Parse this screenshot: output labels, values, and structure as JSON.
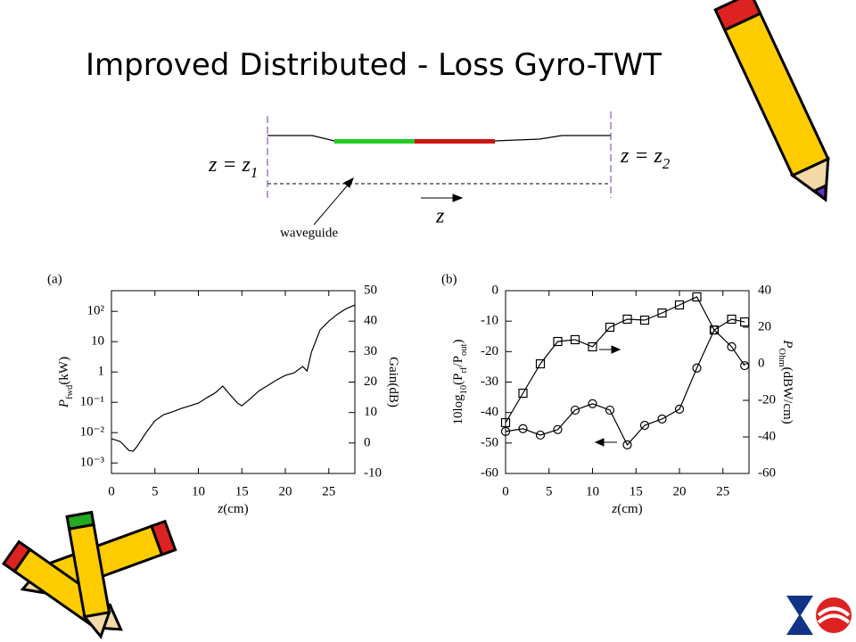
{
  "title": "Improved Distributed - Loss Gyro-TWT",
  "diagram": {
    "left_plane": [
      {
        "text": "z = z",
        "sub": false
      },
      {
        "text": "1",
        "sub": true
      }
    ],
    "right_plane": [
      {
        "text": "z = z",
        "sub": false
      },
      {
        "text": "2",
        "sub": true
      }
    ],
    "direction": "z",
    "waveguide": "waveguide"
  },
  "chart_data": [
    {
      "type": "line",
      "label": "(a)",
      "xlabel": [
        {
          "text": "z",
          "sub": false
        },
        {
          "text": "(cm)",
          "sub": false
        }
      ],
      "ylabel": [
        {
          "text": "P",
          "sub": false
        },
        {
          "text": "fwd",
          "sub": true
        },
        {
          "text": "(kW)",
          "sub": false
        }
      ],
      "y2label": [
        {
          "text": "Gain(dB)",
          "sub": false
        }
      ],
      "xlim": [
        0,
        28
      ],
      "xticks": [
        0,
        5,
        10,
        15,
        20,
        25
      ],
      "ylog": true,
      "ylim": [
        0.00045,
        480
      ],
      "yticks": [
        {
          "value": 0.001,
          "label": "10⁻³"
        },
        {
          "value": 0.01,
          "label": "10⁻²"
        },
        {
          "value": 0.1,
          "label": "10⁻¹"
        },
        1,
        10,
        {
          "value": 100,
          "label": "10²"
        }
      ],
      "y2lim": [
        -10,
        50
      ],
      "y2ticks": [
        -10,
        0,
        10,
        20,
        30,
        40,
        50
      ],
      "series": [
        {
          "axis": "y2",
          "color": "#000000",
          "marker": null,
          "x": [
            0,
            1,
            2,
            2.5,
            3,
            4,
            5,
            6,
            7,
            8,
            9,
            10,
            11,
            12,
            12.8,
            13.5,
            14.5,
            15,
            16,
            17,
            18,
            19,
            20,
            21,
            22,
            22.5,
            23,
            24,
            25,
            26,
            27,
            28
          ],
          "values": [
            1.4,
            0.5,
            -2.4,
            -2.7,
            -0.9,
            3.5,
            7.3,
            9.3,
            10.2,
            11.3,
            12.2,
            13.1,
            14.9,
            16.6,
            18.7,
            16.3,
            13.1,
            12.2,
            14.6,
            17.2,
            18.9,
            20.7,
            22.2,
            23.0,
            25.1,
            23.6,
            29.8,
            37.1,
            40.0,
            42.3,
            44.1,
            45.3
          ]
        }
      ]
    },
    {
      "type": "line",
      "label": "(b)",
      "xlabel": [
        {
          "text": "z",
          "sub": false
        },
        {
          "text": "(cm)",
          "sub": false
        }
      ],
      "ylabel": [
        {
          "text": "10log",
          "sub": false
        },
        {
          "text": "10",
          "sub": true
        },
        {
          "text": "(P",
          "sub": false
        },
        {
          "text": "rf",
          "sub": true
        },
        {
          "text": "/P",
          "sub": false
        },
        {
          "text": "out",
          "sub": true
        },
        {
          "text": ")",
          "sub": false
        }
      ],
      "y2label": [
        {
          "text": "P",
          "sub": false
        },
        {
          "text": "Ohm",
          "sub": true
        },
        {
          "text": "(dBW/cm)",
          "sub": false
        }
      ],
      "xlim": [
        0,
        28
      ],
      "xticks": [
        0,
        5,
        10,
        15,
        20,
        25
      ],
      "ylog": false,
      "ylim": [
        -60,
        0
      ],
      "yticks": [
        -60,
        -50,
        -40,
        -30,
        -20,
        -10,
        0
      ],
      "y2lim": [
        -60,
        40
      ],
      "y2ticks": [
        -60,
        -40,
        -20,
        0,
        20,
        40
      ],
      "series": [
        {
          "axis": "y2",
          "color": "#000000",
          "marker": "square",
          "x": [
            0,
            2,
            4,
            6,
            8,
            10,
            12,
            14,
            16,
            18,
            20,
            22,
            24,
            26,
            27.5
          ],
          "values": [
            -32.2,
            -16.1,
            0,
            12.2,
            13.2,
            9.3,
            20,
            24.4,
            23.9,
            27.8,
            32.2,
            36.6,
            18.5,
            24.4,
            22.9
          ]
        },
        {
          "axis": "y",
          "color": "#000000",
          "marker": "circle",
          "x": [
            0,
            2,
            4,
            6,
            8,
            10,
            12,
            14,
            16,
            18,
            20,
            22,
            24,
            26,
            27.5
          ],
          "values": [
            -46.2,
            -45.3,
            -47.4,
            -45.6,
            -39.2,
            -37.1,
            -39.2,
            -50.6,
            -44.2,
            -42.1,
            -38.9,
            -25.4,
            -12.9,
            -18.4,
            -24.6
          ]
        }
      ]
    }
  ]
}
